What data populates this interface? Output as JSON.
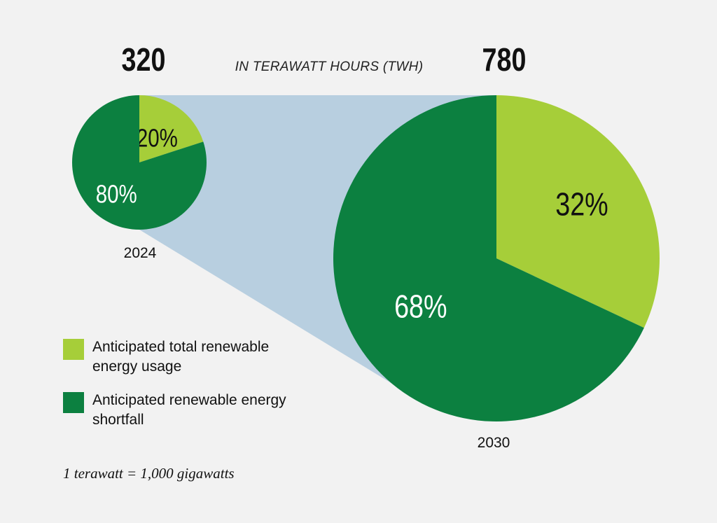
{
  "header": {
    "unit_label": "IN TERAWATT HOURS (TWH)"
  },
  "footnote": "1 terawatt = 1,000 gigawatts",
  "colors": {
    "usage": "#a6ce39",
    "shortfall": "#0c8040",
    "connector": "#b8cfe0",
    "background": "#f2f2f2"
  },
  "legend": {
    "items": [
      {
        "label": "Anticipated total renewable energy usage",
        "color": "#a6ce39"
      },
      {
        "label": "Anticipated renewable energy shortfall",
        "color": "#0c8040"
      }
    ]
  },
  "chart_data": [
    {
      "type": "pie",
      "year": "2024",
      "total": "320",
      "slices": [
        {
          "label": "20%",
          "value": 20,
          "color": "#a6ce39",
          "category": "Anticipated total renewable energy usage"
        },
        {
          "label": "80%",
          "value": 80,
          "color": "#0c8040",
          "category": "Anticipated renewable energy shortfall"
        }
      ]
    },
    {
      "type": "pie",
      "year": "2030",
      "total": "780",
      "slices": [
        {
          "label": "32%",
          "value": 32,
          "color": "#a6ce39",
          "category": "Anticipated total renewable energy usage"
        },
        {
          "label": "68%",
          "value": 68,
          "color": "#0c8040",
          "category": "Anticipated renewable energy shortfall"
        }
      ]
    }
  ]
}
